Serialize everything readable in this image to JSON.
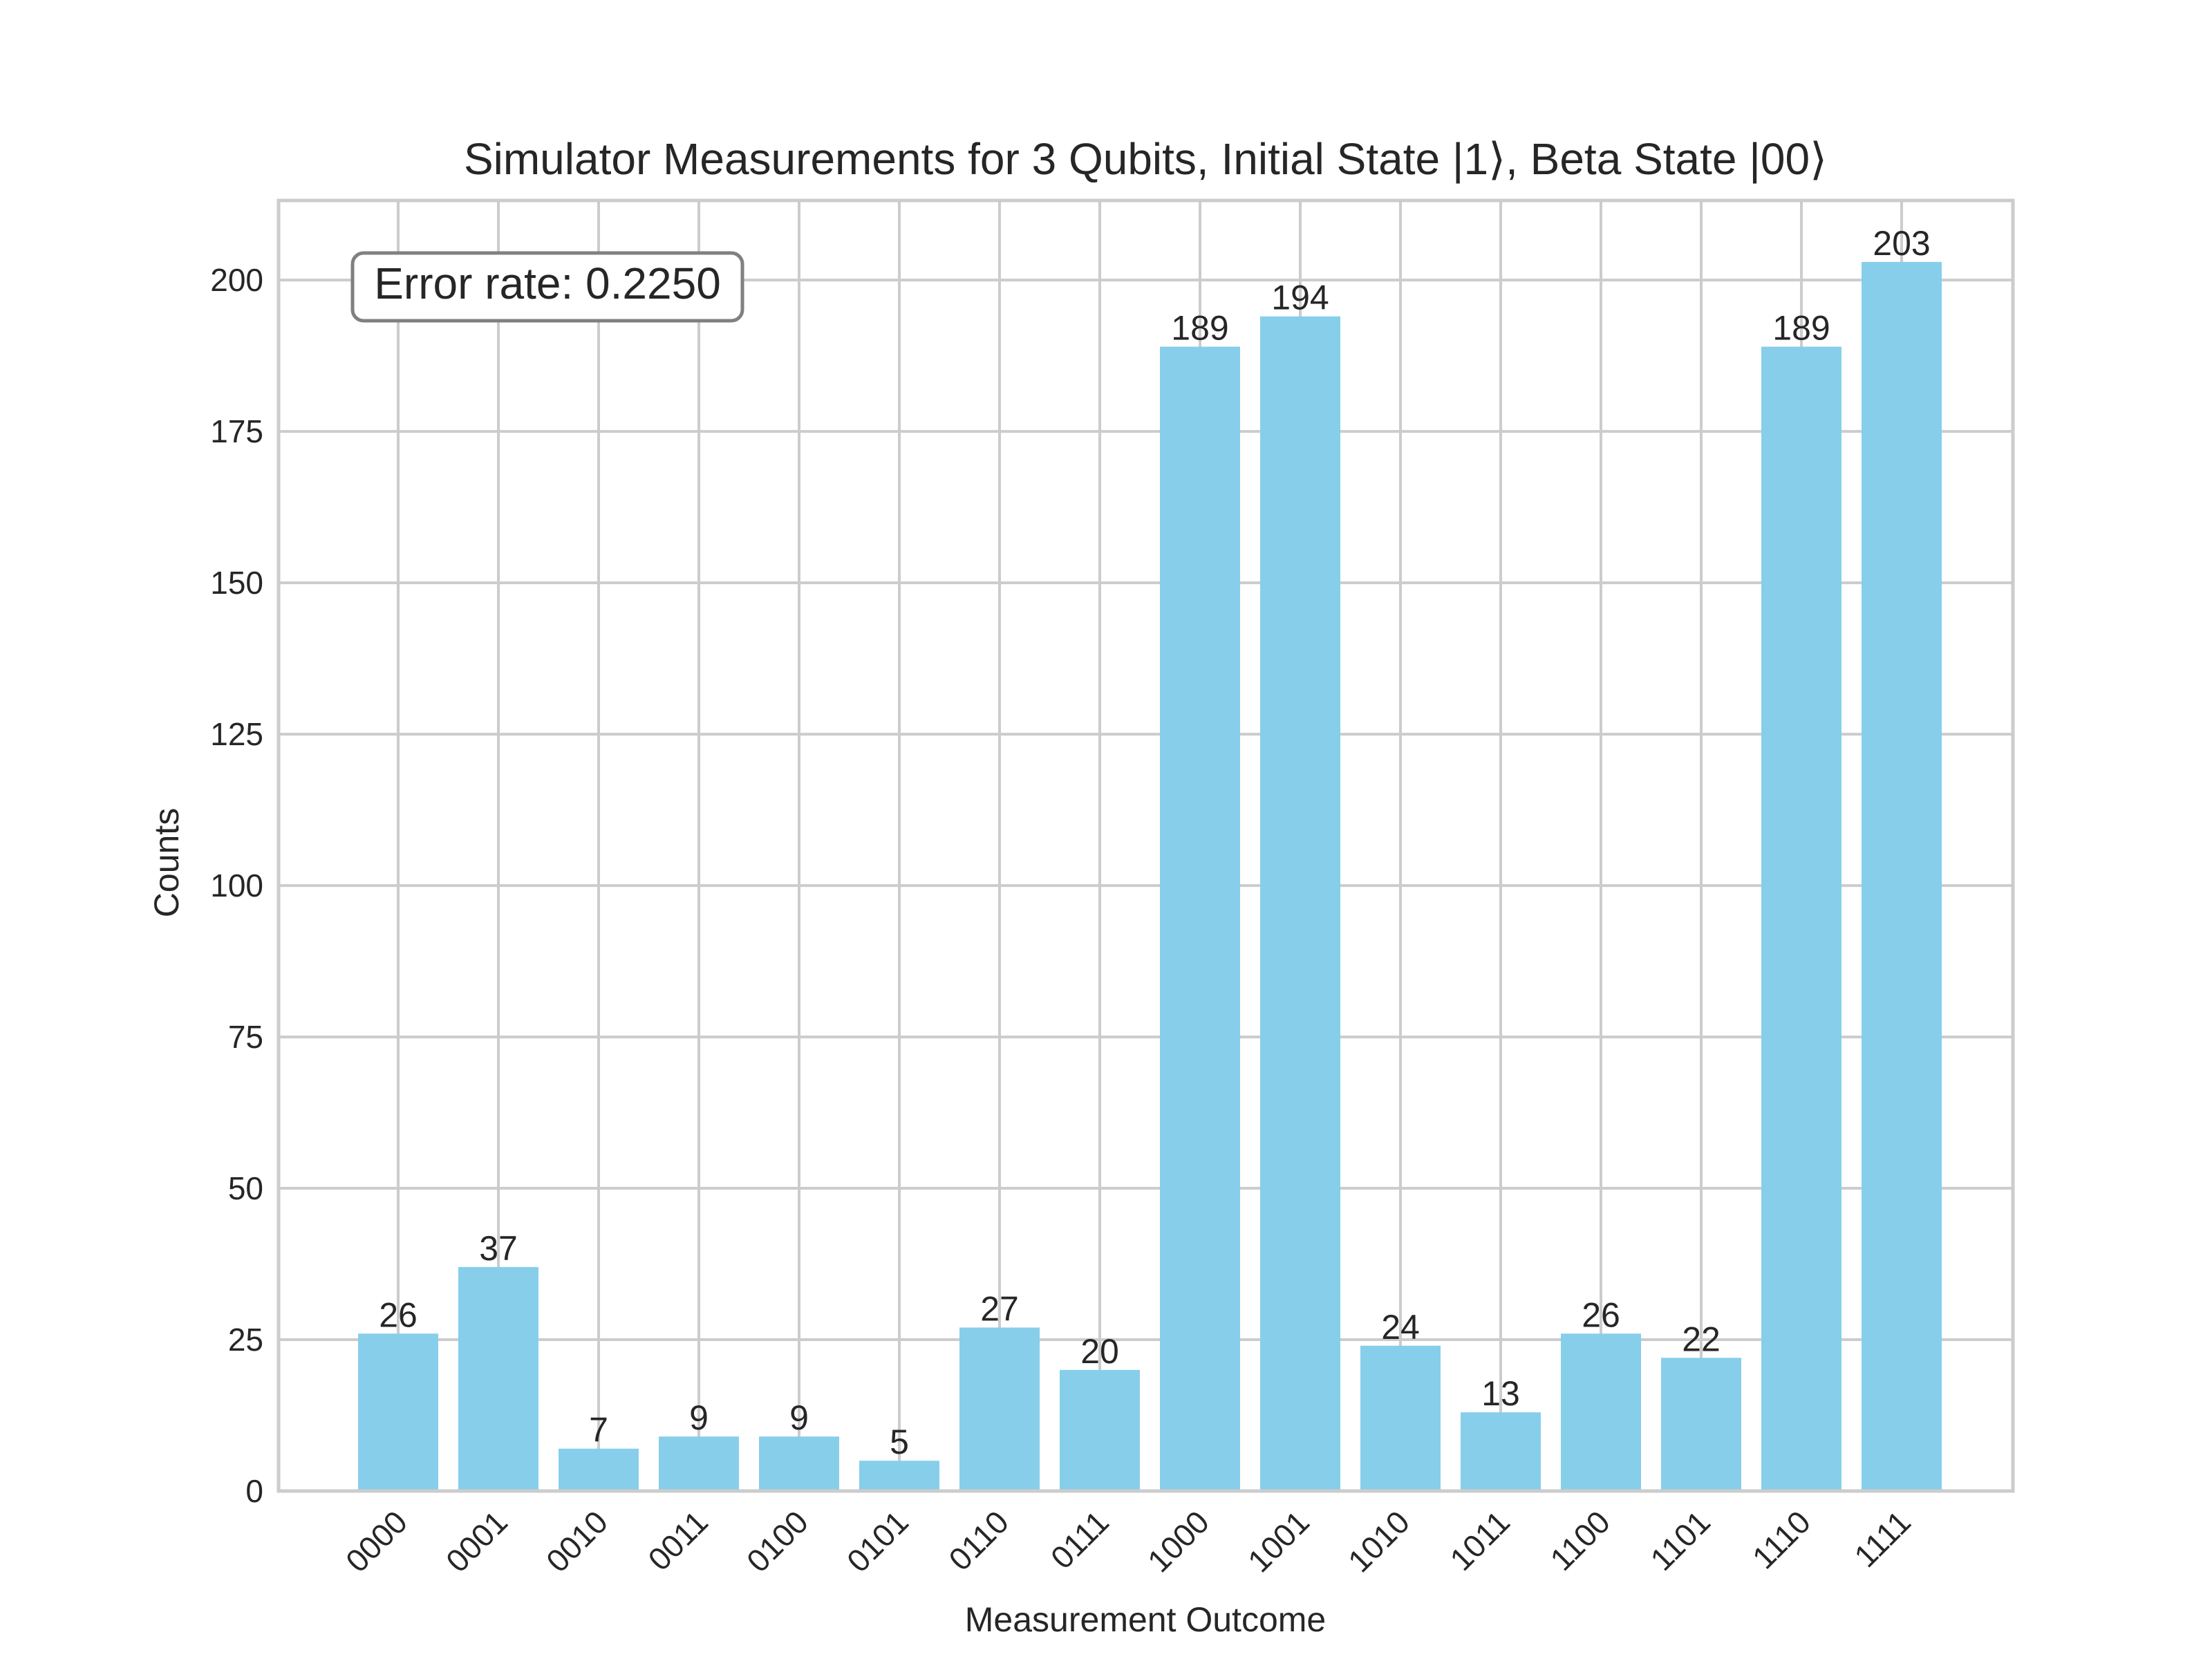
{
  "chart_data": {
    "type": "bar",
    "title": "Simulator Measurements for 3 Qubits, Initial State |1⟩, Beta State |00⟩",
    "xlabel": "Measurement Outcome",
    "ylabel": "Counts",
    "categories": [
      "0000",
      "0001",
      "0010",
      "0011",
      "0100",
      "0101",
      "0110",
      "0111",
      "1000",
      "1001",
      "1010",
      "1011",
      "1100",
      "1101",
      "1110",
      "1111"
    ],
    "values": [
      26,
      37,
      7,
      9,
      9,
      5,
      27,
      20,
      189,
      194,
      24,
      13,
      26,
      22,
      189,
      203
    ],
    "ylim": [
      0,
      213.15
    ],
    "yticks": [
      0,
      25,
      50,
      75,
      100,
      125,
      150,
      175,
      200
    ],
    "grid": true,
    "bar_color": "#87CEEB",
    "annotation": "Error rate: 0.2250"
  }
}
